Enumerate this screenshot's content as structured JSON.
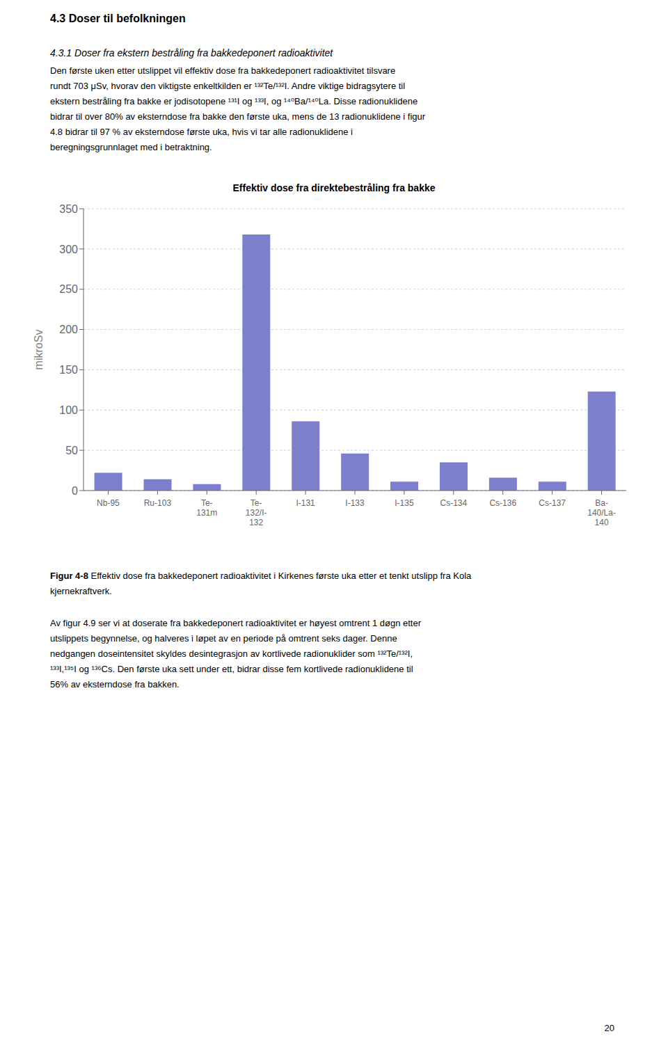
{
  "chart_data": {
    "type": "bar",
    "title": "Effektiv dose fra direktebestråling fra bakke",
    "ylabel": "mikroSv",
    "categories": [
      "Nb-95",
      "Ru-103",
      "Te-\n131m",
      "Te-\n132/I-\n132",
      "I-131",
      "I-133",
      "I-135",
      "Cs-134",
      "Cs-136",
      "Cs-137",
      "Ba-\n140/La-\n140"
    ],
    "values": [
      22,
      14,
      8,
      318,
      86,
      46,
      11,
      35,
      16,
      11,
      123
    ],
    "color": "#7b7fce",
    "ylim": [
      0,
      350
    ],
    "yticks": [
      0,
      50,
      100,
      150,
      200,
      250,
      300,
      350
    ],
    "grid": true,
    "annotations": {
      "heading": "4.3  Doser til befolkningen",
      "subheading": "4.3.1  Doser fra ekstern bestråling fra bakkedeponert radioaktivitet",
      "body1": [
        "Den første uken etter utslippet vil effektiv dose  fra bakkedeponert radioaktivitet tilsvare",
        "rundt 703 μSv, hvorav den viktigste enkeltkilden er ¹³²Te/¹³²I. Andre viktige bidragsytere til",
        "ekstern bestråling fra bakke er jodisotopene ¹³¹I og ¹³³I, og ¹⁴⁰Ba/¹⁴⁰La. Disse radionuklidene",
        "bidrar til over 80% av eksterndose fra bakke den første uka, mens de 13 radionuklidene i figur",
        "4.8 bidrar til 97 % av eksterndose første uka, hvis vi tar alle radionuklidene i",
        "beregningsgrunnlaget med i betraktning."
      ],
      "caption_bold": "Figur 4-8",
      "caption_rest": " Effektiv dose fra bakkedeponert radioaktivitet i Kirkenes første uka etter et tenkt utslipp fra Kola",
      "caption_line2": "kjernekraftverk.",
      "body2": [
        "Av figur 4.9 ser vi at doserate fra bakkedeponert radioaktivitet er høyest omtrent 1 døgn etter",
        "utslippets begynnelse, og halveres i løpet av en periode på omtrent seks dager. Denne",
        "nedgangen doseintensitet skyldes desintegrasjon av kortlivede radionuklider som ¹³²Te/¹³²I,",
        "¹³³I,¹³⁵I og ¹³⁶Cs. Den første uka sett under ett, bidrar disse fem kortlivede radionuklidene til",
        "56% av eksterndose fra bakken."
      ],
      "page_number": "20"
    }
  }
}
